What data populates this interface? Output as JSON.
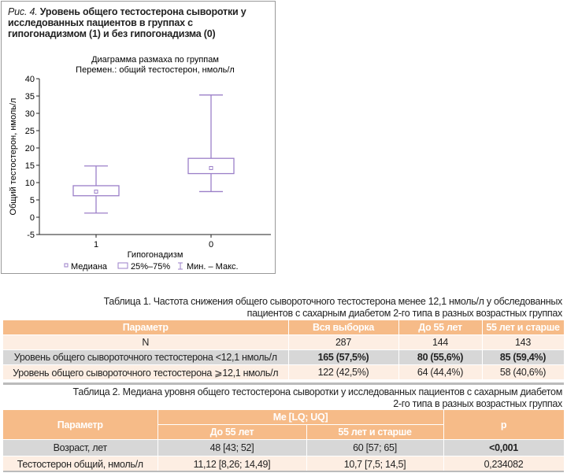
{
  "figure": {
    "caption_label": "Рис. 4.",
    "caption": "Уровень общего тестостерона сыворотки у исследованных пациентов в группах с гипогонадизмом (1) и без гипогонадизма (0)"
  },
  "chart_data": {
    "type": "boxplot",
    "title": "Диаграмма размаха по группам",
    "subtitle": "Перемен.: общий тестостерон, нмоль/л",
    "xlabel": "Гипогонадизм",
    "ylabel": "Общий тестостерон, нмоль/л",
    "ylim": [
      -5,
      40
    ],
    "yticks": [
      -5,
      0,
      5,
      10,
      15,
      20,
      25,
      30,
      35,
      40
    ],
    "categories": [
      "1",
      "0"
    ],
    "series": [
      {
        "category": "1",
        "min": 1.2,
        "q1": 6.2,
        "median": 7.4,
        "q3": 9.1,
        "max": 14.8
      },
      {
        "category": "0",
        "min": 7.4,
        "q1": 12.6,
        "median": 14.2,
        "q3": 17.0,
        "max": 35.3
      }
    ],
    "legend": [
      "Медиана",
      "25%–75%",
      "Мин. – Макс."
    ],
    "color": "#9b7fc8",
    "grid": false,
    "legend_position": "bottom"
  },
  "table1": {
    "title_line1": "Таблица 1. Частота снижения общего сывороточного тестостерона менее 12,1 нмоль/л у обследованных",
    "title_line2": "пациентов с сахарным диабетом 2-го типа в разных возрастных группах",
    "headers": [
      "Параметр",
      "Вся выборка",
      "До 55 лет",
      "55 лет и старше"
    ],
    "rows": [
      [
        "N",
        "287",
        "144",
        "143"
      ],
      [
        "Уровень общего сывороточного тестостерона <12,1 нмоль/л",
        "165 (57,5%)",
        "80 (55,6%)",
        "85 (59,4%)"
      ],
      [
        "Уровень общего сывороточного тестостерона ⩾12,1 нмоль/л",
        "122 (42,5%)",
        "64 (44,4%)",
        "58 (40,6%)"
      ]
    ]
  },
  "table2": {
    "title_line1": "Таблица 2. Медиана уровня общего тестостерона сыворотки у исследованных пациентов  с сахарным диабетом",
    "title_line2": "2-го типа в разных возрастных группах",
    "header_param": "Параметр",
    "header_group": "Me [LQ; UQ]",
    "header_sub": [
      "До 55 лет",
      "55 лет и старше"
    ],
    "header_p": "p",
    "rows": [
      [
        "Возраст, лет",
        "48 [43; 52]",
        "60 [57; 65]",
        "<0,001"
      ],
      [
        "Тестостерон общий, нмоль/л",
        "11,12 [8,26; 14,49]",
        "10,7 [7,5; 14,5]",
        "0,234082"
      ]
    ]
  }
}
